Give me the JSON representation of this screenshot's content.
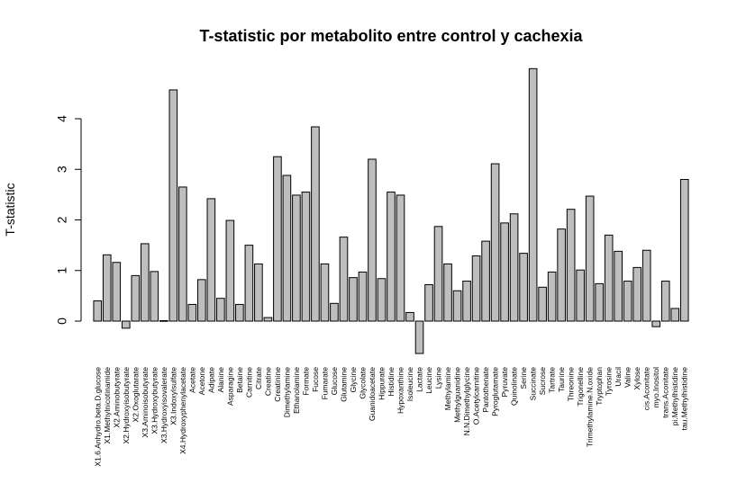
{
  "chart_data": {
    "type": "bar",
    "title": "T-statistic por metabolito entre control y cachexia",
    "xlabel": "",
    "ylabel": "T-statistic",
    "ylim": [
      -0.7,
      5.0
    ],
    "yticks": [
      0,
      1,
      2,
      3,
      4
    ],
    "grid": false,
    "bar_color": "#bebebe",
    "categories": [
      "X1.6.Anhydro.beta.D.glucose",
      "X1.Methylnicotinamide",
      "X2.Aminobutyrate",
      "X2.Hydroxyisobutyrate",
      "X2.Oxoglutarate",
      "X3.Aminoisobutyrate",
      "X3.Hydroxybutyrate",
      "X3.Hydroxyisovalerate",
      "X3.Indoxylsulfate",
      "X4.Hydroxyphenylacetate",
      "Acetate",
      "Acetone",
      "Adipate",
      "Alanine",
      "Asparagine",
      "Betaine",
      "Carnitine",
      "Citrate",
      "Creatine",
      "Creatinine",
      "Dimethylamine",
      "Ethanolamine",
      "Formate",
      "Fucose",
      "Fumarate",
      "Glucose",
      "Glutamine",
      "Glycine",
      "Glycolate",
      "Guanidoacetate",
      "Hippurate",
      "Histidine",
      "Hypoxanthine",
      "Isoleucine",
      "Lactate",
      "Leucine",
      "Lysine",
      "Methylamine",
      "Methylguanidine",
      "N.N.Dimethylglycine",
      "O.Acetylcarnitine",
      "Pantothenate",
      "Pyroglutamate",
      "Pyruvate",
      "Quinolinate",
      "Serine",
      "Succinate",
      "Sucrose",
      "Tartrate",
      "Taurine",
      "Threonine",
      "Trigonelline",
      "Trimethylamine.N.oxide",
      "Tryptophan",
      "Tyrosine",
      "Uracil",
      "Valine",
      "Xylose",
      "cis.Aconitate",
      "myo.Inositol",
      "trans.Aconitate",
      "pi.Methylhistidine",
      "tau.Methylhistidine"
    ],
    "values": [
      0.4,
      1.31,
      1.16,
      -0.14,
      0.9,
      1.53,
      0.98,
      0.01,
      4.57,
      2.65,
      0.33,
      0.82,
      2.42,
      0.45,
      1.99,
      0.33,
      1.5,
      1.13,
      0.07,
      3.25,
      2.88,
      2.49,
      2.55,
      3.84,
      1.13,
      0.35,
      1.66,
      0.86,
      0.97,
      3.2,
      0.84,
      2.55,
      2.49,
      0.17,
      -0.64,
      0.72,
      1.87,
      1.13,
      0.6,
      0.79,
      1.29,
      1.58,
      3.11,
      1.94,
      2.12,
      1.34,
      4.99,
      0.67,
      0.97,
      1.82,
      2.21,
      1.01,
      2.47,
      0.74,
      1.7,
      1.38,
      0.79,
      1.06,
      1.4,
      -0.11,
      0.79,
      0.25,
      2.8
    ]
  }
}
